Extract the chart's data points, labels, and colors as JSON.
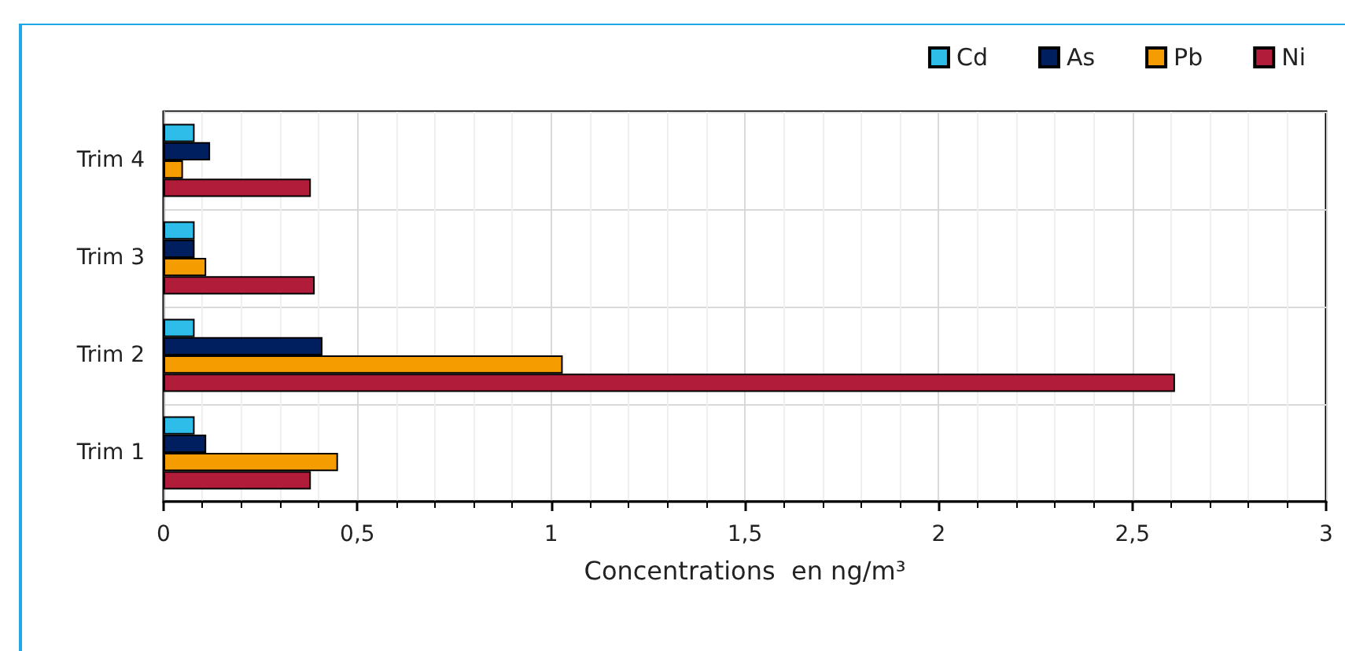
{
  "chart_data": {
    "type": "bar",
    "orientation": "horizontal",
    "xlabel": "Concentrations  en ng/m³",
    "categories": [
      "Trim 4",
      "Trim 3",
      "Trim 2",
      "Trim 1"
    ],
    "series": [
      {
        "name": "Cd",
        "color": "#2dbde8",
        "values": [
          0.08,
          0.08,
          0.08,
          0.08
        ]
      },
      {
        "name": "As",
        "color": "#001f5f",
        "values": [
          0.12,
          0.08,
          0.41,
          0.11
        ]
      },
      {
        "name": "Pb",
        "color": "#f59c00",
        "values": [
          0.05,
          0.11,
          1.03,
          0.45
        ]
      },
      {
        "name": "Ni",
        "color": "#b11c3a",
        "values": [
          0.38,
          0.39,
          2.61,
          0.38
        ]
      }
    ],
    "xlim": [
      0,
      3
    ],
    "xticks": [
      0,
      {
        "value": 0.5,
        "label": "0,5"
      },
      1,
      {
        "value": 1.5,
        "label": "1,5"
      },
      2,
      {
        "value": 2.5,
        "label": "2,5"
      },
      3
    ],
    "grid": true,
    "legend": "top right"
  }
}
